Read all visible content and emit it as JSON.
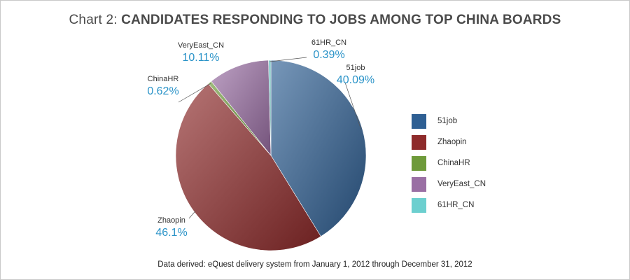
{
  "title": {
    "prefix": "Chart 2:",
    "main": "CANDIDATES RESPONDING TO JOBS AMONG TOP CHINA BOARDS"
  },
  "footer": "Data derived: eQuest delivery system from January 1, 2012 through December 31, 2012",
  "chart_data": {
    "type": "pie",
    "title": "Chart 2: CANDIDATES RESPONDING TO JOBS AMONG TOP CHINA BOARDS",
    "categories": [
      "51job",
      "Zhaopin",
      "ChinaHR",
      "VeryEast_CN",
      "61HR_CN"
    ],
    "values": [
      40.09,
      46.1,
      0.62,
      10.11,
      0.39
    ],
    "labels": [
      "40.09%",
      "46.1%",
      "0.62%",
      "10.11%",
      "0.39%"
    ],
    "colors": [
      "#2e5f93",
      "#8e2b2b",
      "#6e9a3a",
      "#9a6fa4",
      "#6ccfcf"
    ],
    "legend_position": "right"
  }
}
